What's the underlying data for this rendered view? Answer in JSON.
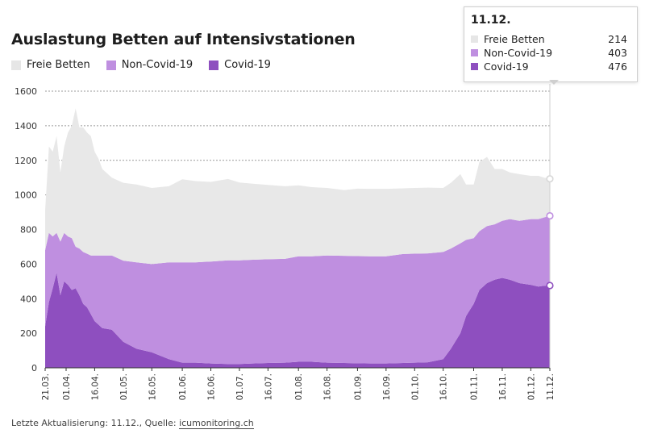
{
  "title": "Auslastung Betten auf Intensivstationen",
  "legend": [
    {
      "label": "Freie Betten",
      "color": "#e8e8e8"
    },
    {
      "label": "Non-Covid-19",
      "color": "#bf8fe0"
    },
    {
      "label": "Covid-19",
      "color": "#8e4fbf"
    }
  ],
  "tooltip": {
    "date": "11.12.",
    "rows": [
      {
        "label": "Freie Betten",
        "value": "214",
        "color": "#e8e8e8"
      },
      {
        "label": "Non-Covid-19",
        "value": "403",
        "color": "#bf8fe0"
      },
      {
        "label": "Covid-19",
        "value": "476",
        "color": "#8e4fbf"
      }
    ]
  },
  "footer": {
    "prefix": "Letzte Aktualisierung: 11.12., Quelle: ",
    "source": "icumonitoring.ch"
  },
  "chart_data": {
    "type": "area",
    "stacked": true,
    "x": [
      "21.03.",
      "23.03.",
      "25.03.",
      "27.03.",
      "29.03.",
      "31.03.",
      "02.04.",
      "04.04.",
      "06.04.",
      "08.04.",
      "10.04.",
      "12.04.",
      "14.04.",
      "16.04.",
      "18.04.",
      "20.04.",
      "25.04.",
      "01.05.",
      "08.05.",
      "16.05.",
      "25.05.",
      "01.06.",
      "08.06.",
      "16.06.",
      "25.06.",
      "01.07.",
      "08.07.",
      "16.07.",
      "25.07.",
      "01.08.",
      "08.08.",
      "16.08.",
      "25.08.",
      "01.09.",
      "08.09.",
      "16.09.",
      "25.09.",
      "01.10.",
      "08.10.",
      "16.10.",
      "20.10.",
      "25.10.",
      "28.10.",
      "01.11.",
      "04.11.",
      "08.11.",
      "12.11.",
      "16.11.",
      "20.11.",
      "25.11.",
      "01.12.",
      "05.12.",
      "08.12.",
      "11.12."
    ],
    "series": [
      {
        "name": "Covid-19",
        "values": [
          240,
          380,
          460,
          550,
          420,
          500,
          480,
          450,
          460,
          420,
          370,
          350,
          310,
          270,
          250,
          230,
          220,
          150,
          110,
          90,
          50,
          30,
          30,
          25,
          22,
          22,
          25,
          28,
          30,
          35,
          35,
          30,
          28,
          26,
          25,
          25,
          28,
          30,
          32,
          50,
          110,
          200,
          300,
          370,
          450,
          490,
          510,
          520,
          510,
          490,
          480,
          470,
          475,
          476
        ]
      },
      {
        "name": "Non-Covid-19",
        "values": [
          440,
          400,
          300,
          230,
          310,
          280,
          280,
          300,
          240,
          270,
          300,
          310,
          340,
          380,
          400,
          420,
          430,
          470,
          500,
          510,
          560,
          580,
          580,
          590,
          600,
          600,
          600,
          600,
          600,
          610,
          610,
          620,
          620,
          620,
          620,
          620,
          630,
          630,
          630,
          620,
          580,
          520,
          440,
          380,
          340,
          330,
          320,
          330,
          350,
          360,
          380,
          390,
          395,
          403
        ]
      },
      {
        "name": "Freie Betten",
        "values": [
          230,
          500,
          490,
          560,
          400,
          500,
          600,
          650,
          800,
          700,
          720,
          700,
          690,
          600,
          560,
          500,
          450,
          450,
          450,
          440,
          440,
          480,
          470,
          460,
          470,
          450,
          440,
          430,
          420,
          410,
          400,
          390,
          380,
          390,
          390,
          390,
          380,
          380,
          380,
          370,
          380,
          400,
          320,
          310,
          400,
          400,
          320,
          300,
          270,
          270,
          250,
          250,
          230,
          214
        ]
      }
    ],
    "ylim": [
      0,
      1600
    ],
    "yticks": [
      "0",
      "200",
      "400",
      "600",
      "800",
      "1000",
      "1200",
      "1400",
      "1600"
    ],
    "xticks": [
      "21.03.",
      "01.04.",
      "16.04.",
      "01.05.",
      "16.05.",
      "01.06.",
      "16.06.",
      "01.07.",
      "16.07.",
      "01.08.",
      "16.08.",
      "01.09.",
      "16.09.",
      "01.10.",
      "16.10.",
      "01.11.",
      "16.11.",
      "01.12.",
      "11.12."
    ],
    "grid": "horizontal dotted",
    "legend_position": "top-left",
    "colors": {
      "Freie Betten": "#e8e8e8",
      "Non-Covid-19": "#bf8fe0",
      "Covid-19": "#8e4fbf"
    }
  }
}
